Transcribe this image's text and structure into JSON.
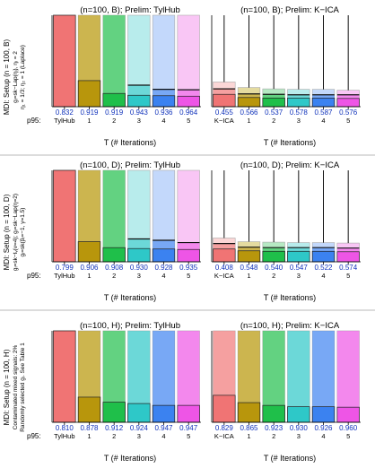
{
  "figure": {
    "p95_label": "p95:",
    "xlabel": "T (# Iterations)",
    "colors": {
      "bars": [
        "#f07474",
        "#b8960c",
        "#1fbf4a",
        "#2ec8c8",
        "#3b82f0",
        "#ee55e6"
      ],
      "faded": [
        "#fbd6d6",
        "#e4dba0",
        "#b6e9c3",
        "#b8ecec",
        "#c3d8fb",
        "#f9c6f5"
      ],
      "p95_text": "#1133bb",
      "axis": "#000000",
      "separator": "#b9b9b9"
    }
  },
  "rows": [
    {
      "side_label": [
        "MDI: Setup (n = 100, B)",
        "gᵢ=sk−Lap(ηᵢ), ηᵢ = 2",
        "η₁ = 1/3; η₂ = 1 (Laplace)"
      ]
    },
    {
      "side_label": [
        "MDI: Setup (n = 100, D)",
        "gᵢ=sk−tᵥ(ν=4); gᵢ=sk−Lap(η=2)",
        "gᵢ=sk(βᵢ=−1, γ=1.5)"
      ]
    },
    {
      "side_label": [
        "MDI: Setup (n = 100, H)",
        "Contaminated mixed signals: 2%",
        "Randomly selected gᵢ. See Table 1"
      ]
    }
  ],
  "chart_data": [
    {
      "type": "bar",
      "title": "(n=100, B);  Prelim: TylHub",
      "categories": [
        "TylHub",
        "1",
        "2",
        "3",
        "4",
        "5"
      ],
      "xlabel": "T (# Iterations)",
      "ylim": [
        0,
        1
      ],
      "median": [
        1.0,
        0.285,
        0.145,
        0.125,
        0.12,
        0.115
      ],
      "quartile": [
        1.0,
        1.0,
        1.0,
        0.235,
        0.19,
        0.185
      ],
      "whisker_top": [
        1.0,
        1.0,
        1.0,
        1.0,
        1.0,
        1.0
      ],
      "p95": [
        "0.832",
        "0.919",
        "0.919",
        "0.943",
        "0.936",
        "0.964"
      ]
    },
    {
      "type": "bar",
      "title": "(n=100, B);  Prelim: K−ICA",
      "categories": [
        "K−ICA",
        "1",
        "2",
        "3",
        "4",
        "5"
      ],
      "xlabel": "T (# Iterations)",
      "ylim": [
        0,
        1
      ],
      "median": [
        0.135,
        0.1,
        0.095,
        0.095,
        0.095,
        0.09
      ],
      "quartile": [
        0.195,
        0.14,
        0.135,
        0.13,
        0.13,
        0.13
      ],
      "whisker_top": [
        0.27,
        0.21,
        0.195,
        0.19,
        0.19,
        0.18
      ],
      "whisker_line": [
        1.0,
        1.0,
        1.0,
        1.0,
        1.0,
        1.0
      ],
      "p95": [
        "0.455",
        "0.566",
        "0.537",
        "0.578",
        "0.587",
        "0.576"
      ]
    },
    {
      "type": "bar",
      "title": "(n=100, D);  Prelim: TylHub",
      "categories": [
        "TylHub",
        "1",
        "2",
        "3",
        "4",
        "5"
      ],
      "xlabel": "T (# Iterations)",
      "ylim": [
        0,
        1
      ],
      "median": [
        1.0,
        0.22,
        0.155,
        0.145,
        0.14,
        0.135
      ],
      "quartile": [
        1.0,
        1.0,
        1.0,
        0.25,
        0.235,
        0.21
      ],
      "whisker_top": [
        1.0,
        1.0,
        1.0,
        1.0,
        1.0,
        1.0
      ],
      "p95": [
        "0.799",
        "0.906",
        "0.908",
        "0.930",
        "0.928",
        "0.935"
      ]
    },
    {
      "type": "bar",
      "title": "(n=100, D);  Prelim: K−ICA",
      "categories": [
        "K−ICA",
        "1",
        "2",
        "3",
        "4",
        "5"
      ],
      "xlabel": "T (# Iterations)",
      "ylim": [
        0,
        1
      ],
      "median": [
        0.14,
        0.12,
        0.115,
        0.115,
        0.115,
        0.11
      ],
      "quartile": [
        0.2,
        0.16,
        0.155,
        0.155,
        0.155,
        0.15
      ],
      "whisker_top": [
        0.26,
        0.22,
        0.215,
        0.21,
        0.21,
        0.205
      ],
      "whisker_line": [
        1.0,
        1.0,
        1.0,
        1.0,
        1.0,
        1.0
      ],
      "p95": [
        "0.408",
        "0.548",
        "0.540",
        "0.547",
        "0.522",
        "0.574"
      ]
    },
    {
      "type": "bar",
      "title": "(n=100, H);  Prelim: TylHub",
      "categories": [
        "TylHub",
        "1",
        "2",
        "3",
        "4",
        "5"
      ],
      "xlabel": "T (# Iterations)",
      "ylim": [
        0,
        1
      ],
      "median": [
        1.0,
        0.275,
        0.22,
        0.205,
        0.185,
        0.185
      ],
      "quartile": [
        1.0,
        1.0,
        1.0,
        1.0,
        1.0,
        1.0
      ],
      "whisker_top": [
        1.0,
        1.0,
        1.0,
        1.0,
        1.0,
        1.0
      ],
      "p95": [
        "0.810",
        "0.878",
        "0.912",
        "0.924",
        "0.947",
        "0.947"
      ]
    },
    {
      "type": "bar",
      "title": "(n=100, H);  Prelim: K−ICA",
      "categories": [
        "K−ICA",
        "1",
        "2",
        "3",
        "4",
        "5"
      ],
      "xlabel": "T (# Iterations)",
      "ylim": [
        0,
        1
      ],
      "median": [
        0.295,
        0.215,
        0.185,
        0.17,
        0.17,
        0.165
      ],
      "quartile": [
        1.0,
        1.0,
        1.0,
        1.0,
        1.0,
        1.0
      ],
      "whisker_top": [
        1.0,
        1.0,
        1.0,
        1.0,
        1.0,
        1.0
      ],
      "p95": [
        "0.829",
        "0.865",
        "0.923",
        "0.930",
        "0.926",
        "0.960"
      ]
    }
  ]
}
